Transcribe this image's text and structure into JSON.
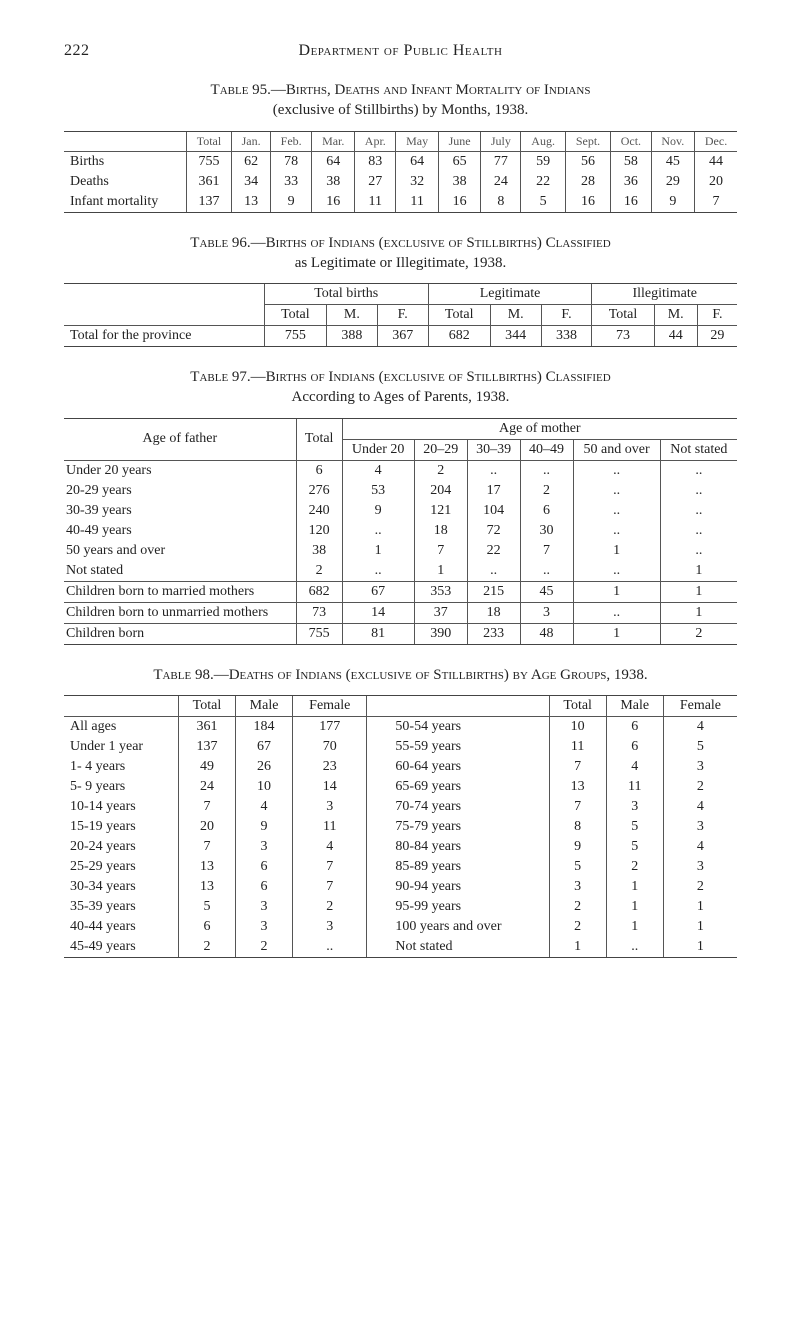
{
  "page_number": "222",
  "running_title": "Department of Public Health",
  "t95": {
    "label_a": "Table 95.—Births, Deaths and Infant Mortality of Indians",
    "label_b": "(exclusive of Stillbirths) by Months, 1938.",
    "months": [
      "Total",
      "Jan.",
      "Feb.",
      "Mar.",
      "Apr.",
      "May",
      "June",
      "July",
      "Aug.",
      "Sept.",
      "Oct.",
      "Nov.",
      "Dec."
    ],
    "rows": [
      {
        "label": "Births",
        "vals": [
          "755",
          "62",
          "78",
          "64",
          "83",
          "64",
          "65",
          "77",
          "59",
          "56",
          "58",
          "45",
          "44"
        ]
      },
      {
        "label": "Deaths",
        "vals": [
          "361",
          "34",
          "33",
          "38",
          "27",
          "32",
          "38",
          "24",
          "22",
          "28",
          "36",
          "29",
          "20"
        ]
      },
      {
        "label": "Infant mortality",
        "vals": [
          "137",
          "13",
          "9",
          "16",
          "11",
          "11",
          "16",
          "8",
          "5",
          "16",
          "16",
          "9",
          "7"
        ]
      }
    ]
  },
  "t96": {
    "label_a": "Table 96.—Births of Indians (exclusive of Stillbirths) Classified",
    "label_b": "as Legitimate or Illegitimate, 1938.",
    "groups": [
      "Total births",
      "Legitimate",
      "Illegitimate"
    ],
    "sub": [
      "Total",
      "M.",
      "F.",
      "Total",
      "M.",
      "F.",
      "Total",
      "M.",
      "F."
    ],
    "row_label": "Total for the province",
    "vals": [
      "755",
      "388",
      "367",
      "682",
      "344",
      "338",
      "73",
      "44",
      "29"
    ]
  },
  "t97": {
    "label_a": "Table 97.—Births of Indians (exclusive of Stillbirths) Classified",
    "label_b": "According to Ages of Parents, 1938.",
    "col_headers": {
      "father": "Age of father",
      "total": "Total",
      "mother_group": "Age of mother",
      "mother_cols": [
        "Under 20",
        "20–29",
        "30–39",
        "40–49",
        "50 and over",
        "Not stated"
      ]
    },
    "body": [
      {
        "label": "Under 20 years",
        "vals": [
          "6",
          "4",
          "2",
          "..",
          "..",
          "..",
          ".."
        ]
      },
      {
        "label": "20-29 years",
        "vals": [
          "276",
          "53",
          "204",
          "17",
          "2",
          "..",
          ".."
        ]
      },
      {
        "label": "30-39 years",
        "vals": [
          "240",
          "9",
          "121",
          "104",
          "6",
          "..",
          ".."
        ]
      },
      {
        "label": "40-49 years",
        "vals": [
          "120",
          "..",
          "18",
          "72",
          "30",
          "..",
          ".."
        ]
      },
      {
        "label": "50 years and over",
        "vals": [
          "38",
          "1",
          "7",
          "22",
          "7",
          "1",
          ".."
        ]
      },
      {
        "label": "Not stated",
        "vals": [
          "2",
          "..",
          "1",
          "..",
          "..",
          "..",
          "1"
        ]
      }
    ],
    "summary": [
      {
        "label": "Children born to married mothers",
        "vals": [
          "682",
          "67",
          "353",
          "215",
          "45",
          "1",
          "1"
        ]
      },
      {
        "label": "Children born to unmarried mothers",
        "vals": [
          "73",
          "14",
          "37",
          "18",
          "3",
          "..",
          "1"
        ]
      },
      {
        "label": "Children born",
        "vals": [
          "755",
          "81",
          "390",
          "233",
          "48",
          "1",
          "2"
        ]
      }
    ]
  },
  "t98": {
    "label": "Table 98.—Deaths of Indians (exclusive of Stillbirths) by Age Groups, 1938.",
    "col_headers": [
      "Total",
      "Male",
      "Female"
    ],
    "left": [
      {
        "label": "All ages",
        "vals": [
          "361",
          "184",
          "177"
        ]
      },
      {
        "label": "Under 1 year",
        "vals": [
          "137",
          "67",
          "70"
        ]
      },
      {
        "label": "1- 4 years",
        "vals": [
          "49",
          "26",
          "23"
        ]
      },
      {
        "label": "5- 9 years",
        "vals": [
          "24",
          "10",
          "14"
        ]
      },
      {
        "label": "10-14 years",
        "vals": [
          "7",
          "4",
          "3"
        ]
      },
      {
        "label": "15-19 years",
        "vals": [
          "20",
          "9",
          "11"
        ]
      },
      {
        "label": "20-24 years",
        "vals": [
          "7",
          "3",
          "4"
        ]
      },
      {
        "label": "25-29 years",
        "vals": [
          "13",
          "6",
          "7"
        ]
      },
      {
        "label": "30-34 years",
        "vals": [
          "13",
          "6",
          "7"
        ]
      },
      {
        "label": "35-39 years",
        "vals": [
          "5",
          "3",
          "2"
        ]
      },
      {
        "label": "40-44 years",
        "vals": [
          "6",
          "3",
          "3"
        ]
      },
      {
        "label": "45-49 years",
        "vals": [
          "2",
          "2",
          ".."
        ]
      }
    ],
    "right": [
      {
        "label": "50-54 years",
        "vals": [
          "10",
          "6",
          "4"
        ]
      },
      {
        "label": "55-59 years",
        "vals": [
          "11",
          "6",
          "5"
        ]
      },
      {
        "label": "60-64 years",
        "vals": [
          "7",
          "4",
          "3"
        ]
      },
      {
        "label": "65-69 years",
        "vals": [
          "13",
          "11",
          "2"
        ]
      },
      {
        "label": "70-74 years",
        "vals": [
          "7",
          "3",
          "4"
        ]
      },
      {
        "label": "75-79 years",
        "vals": [
          "8",
          "5",
          "3"
        ]
      },
      {
        "label": "80-84 years",
        "vals": [
          "9",
          "5",
          "4"
        ]
      },
      {
        "label": "85-89 years",
        "vals": [
          "5",
          "2",
          "3"
        ]
      },
      {
        "label": "90-94 years",
        "vals": [
          "3",
          "1",
          "2"
        ]
      },
      {
        "label": "95-99 years",
        "vals": [
          "2",
          "1",
          "1"
        ]
      },
      {
        "label": "100 years and over",
        "vals": [
          "2",
          "1",
          "1"
        ]
      },
      {
        "label": "Not stated",
        "vals": [
          "1",
          "..",
          "1"
        ]
      }
    ]
  }
}
